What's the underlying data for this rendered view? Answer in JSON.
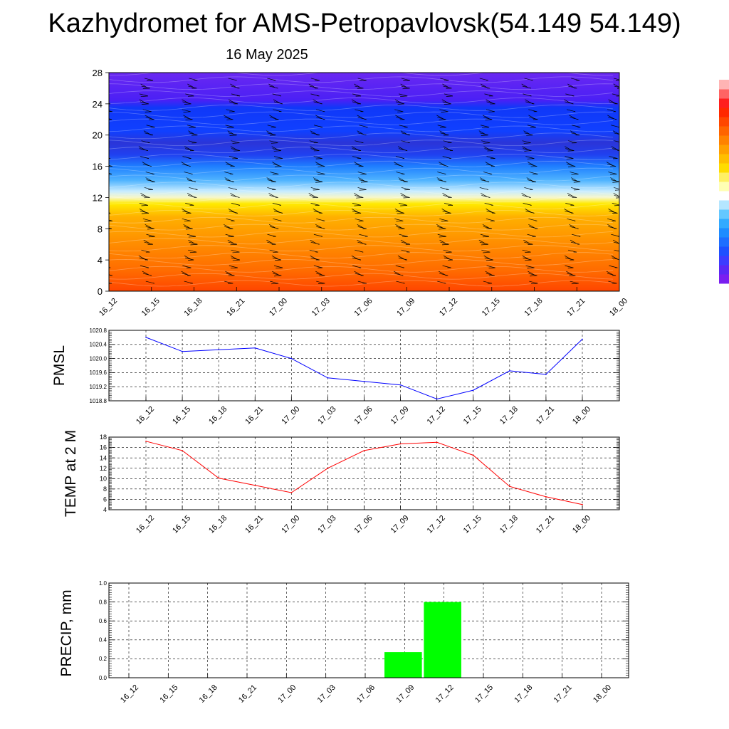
{
  "header": {
    "title": "Kazhydromet for AMS-Petropavlovsk(54.149 54.149)",
    "date": "16 May 2025"
  },
  "time_labels": [
    "16_12",
    "16_15",
    "16_18",
    "16_21",
    "17_00",
    "17_03",
    "17_06",
    "17_09",
    "17_12",
    "17_15",
    "17_18",
    "17_21",
    "18_00"
  ],
  "chart_data": [
    {
      "type": "heatmap",
      "title": "",
      "xlabel": "",
      "ylabel": "",
      "x": [
        "16_12",
        "16_15",
        "16_18",
        "16_21",
        "17_00",
        "17_03",
        "17_06",
        "17_09",
        "17_12",
        "17_15",
        "17_18",
        "17_21",
        "18_00"
      ],
      "ylim": [
        0,
        28
      ],
      "yticks": [
        0,
        4,
        8,
        12,
        16,
        20,
        24,
        28
      ],
      "color_stops": [
        {
          "y": 0,
          "color": "#ff4500"
        },
        {
          "y": 2.5,
          "color": "#ff6a00"
        },
        {
          "y": 6,
          "color": "#ff8c00"
        },
        {
          "y": 9.5,
          "color": "#ffb000"
        },
        {
          "y": 11.2,
          "color": "#ffea00"
        },
        {
          "y": 12,
          "color": "#f7f7c8"
        },
        {
          "y": 12.8,
          "color": "#c8ecff"
        },
        {
          "y": 14.2,
          "color": "#50b4ff"
        },
        {
          "y": 16,
          "color": "#1f7fff"
        },
        {
          "y": 17.5,
          "color": "#2040f0"
        },
        {
          "y": 19,
          "color": "#2b35d8"
        },
        {
          "y": 20.5,
          "color": "#1040ff"
        },
        {
          "y": 23.5,
          "color": "#1038f8"
        },
        {
          "y": 24.5,
          "color": "#4b20f5"
        },
        {
          "y": 28,
          "color": "#6a28f2"
        }
      ],
      "overlay": "wind barbs"
    },
    {
      "type": "line",
      "title": "",
      "xlabel": "",
      "ylabel": "PMSL",
      "x": [
        "16_12",
        "16_15",
        "16_18",
        "16_21",
        "17_00",
        "17_03",
        "17_06",
        "17_09",
        "17_12",
        "17_15",
        "17_18",
        "17_21",
        "18_00"
      ],
      "series": [
        {
          "values": [
            1020.6,
            1020.2,
            1020.25,
            1020.3,
            1020.0,
            1019.45,
            1019.35,
            1019.25,
            1018.85,
            1019.1,
            1019.65,
            1019.55,
            1020.55
          ],
          "color": "#0000ff"
        }
      ],
      "ylim": [
        1018.8,
        1020.8
      ],
      "yticks": [
        1018.8,
        1019.2,
        1019.6,
        1020.0,
        1020.4,
        1020.8
      ],
      "ytick_labels": [
        "1018.8",
        "1019.2",
        "1019.6",
        "1020.0",
        "1020.4",
        "1020.8"
      ],
      "grid": true
    },
    {
      "type": "line",
      "title": "",
      "xlabel": "",
      "ylabel": "TEMP at 2 M",
      "x": [
        "16_12",
        "16_15",
        "16_18",
        "16_21",
        "17_00",
        "17_03",
        "17_06",
        "17_09",
        "17_12",
        "17_15",
        "17_18",
        "17_21",
        "18_00"
      ],
      "series": [
        {
          "values": [
            17.2,
            15.4,
            10.1,
            8.7,
            7.3,
            12.0,
            15.4,
            16.7,
            17.0,
            14.5,
            8.5,
            6.5,
            5.0
          ],
          "color": "#ff0000"
        }
      ],
      "ylim": [
        4,
        18
      ],
      "yticks": [
        4,
        6,
        8,
        10,
        12,
        14,
        16,
        18
      ],
      "ytick_labels": [
        "4",
        "6",
        "8",
        "10",
        "12",
        "14",
        "16",
        "18"
      ],
      "grid": true
    },
    {
      "type": "bar",
      "title": "",
      "xlabel": "",
      "ylabel": "PRECIP, mm",
      "categories": [
        "16_12",
        "16_15",
        "16_18",
        "16_21",
        "17_00",
        "17_03",
        "17_06",
        "17_09",
        "17_12",
        "17_15",
        "17_18",
        "17_21",
        "18_00"
      ],
      "values": [
        0,
        0,
        0,
        0,
        0,
        0,
        0,
        0.27,
        0.8,
        0,
        0,
        0,
        0
      ],
      "color": "#00ff00",
      "ylim": [
        0,
        1.0
      ],
      "yticks": [
        0,
        0.2,
        0.4,
        0.6,
        0.8,
        1.0
      ],
      "ytick_labels": [
        "0.0",
        "0.2",
        "0.4",
        "0.6",
        "0.8",
        "1.0"
      ],
      "grid": true
    }
  ],
  "colorbar": {
    "colors": [
      "#7a1ef0",
      "#5a28f5",
      "#3c3cff",
      "#1e50ff",
      "#1e6eff",
      "#1e8cff",
      "#32aaff",
      "#64c8ff",
      "#b4e6ff",
      "#ffffff",
      "#ffffb4",
      "#fff064",
      "#ffdc00",
      "#ffbe00",
      "#ffa000",
      "#ff8200",
      "#ff6400",
      "#ff4600",
      "#ff2800",
      "#ff1e1e",
      "#ff6464",
      "#ffb4b4"
    ]
  }
}
